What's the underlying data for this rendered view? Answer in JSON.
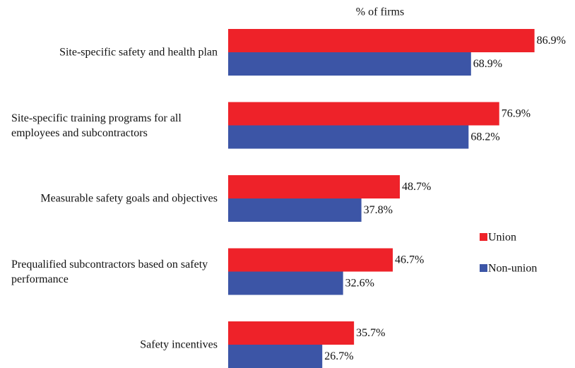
{
  "chart_data": {
    "type": "bar",
    "orientation": "horizontal",
    "title": "% of firms",
    "categories": [
      "Site-specific safety and health plan",
      "Site-specific training programs for all employees and subcontractors",
      "Measurable safety goals and objectives",
      "Prequalified subcontractors based on safety performance",
      "Safety incentives"
    ],
    "series": [
      {
        "name": "Union",
        "color": "#ee2229",
        "values": [
          86.9,
          76.9,
          48.7,
          46.7,
          35.7
        ],
        "value_labels": [
          "86.9%",
          "76.9%",
          "48.7%",
          "46.7%",
          "35.7%"
        ]
      },
      {
        "name": "Non-union",
        "color": "#3c55a6",
        "values": [
          68.9,
          68.2,
          37.8,
          32.6,
          26.7
        ],
        "value_labels": [
          "68.9%",
          "68.2%",
          "37.8%",
          "32.6%",
          "26.7%"
        ]
      }
    ]
  }
}
